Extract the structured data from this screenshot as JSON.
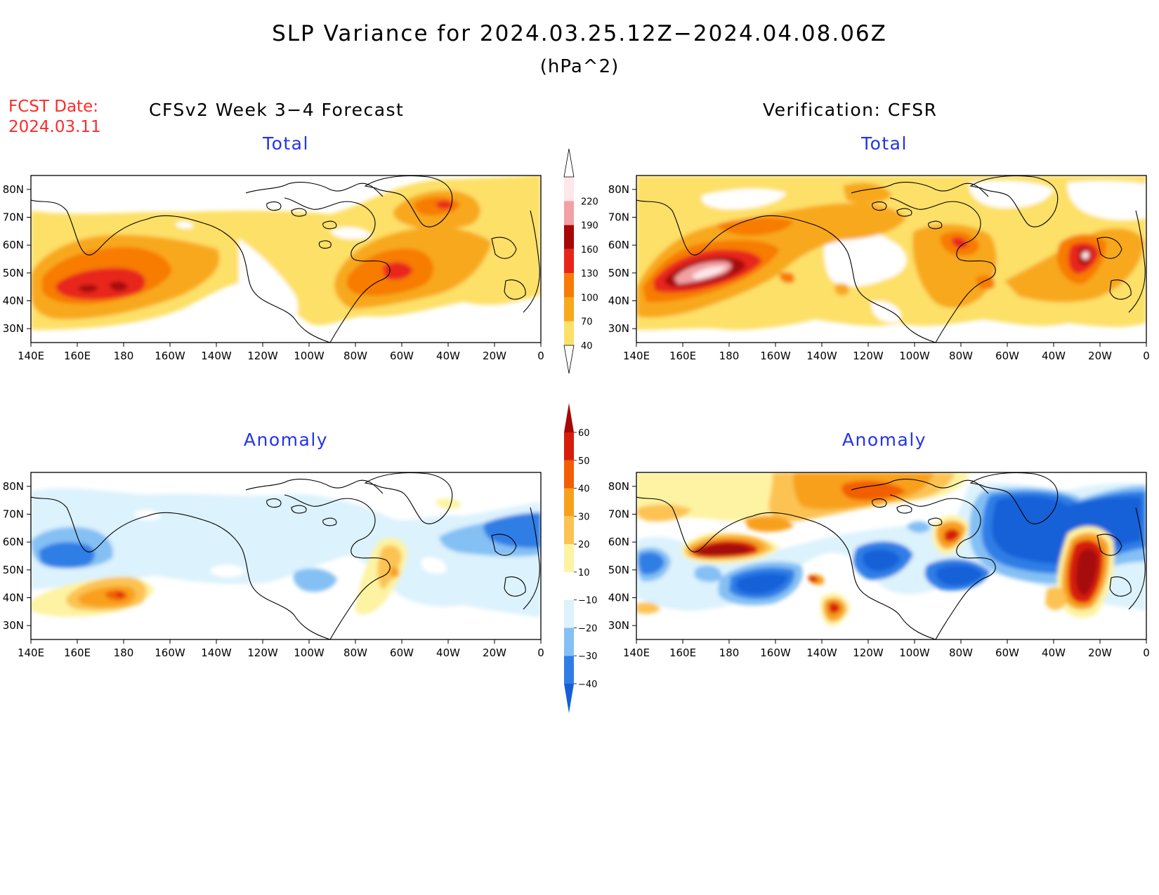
{
  "figure": {
    "title": "SLP Variance for 2024.03.25.12Z−2024.04.08.06Z",
    "units": "(hPa^2)",
    "fcst_label_line1": "FCST Date:",
    "fcst_label_line2": "2024.03.11",
    "left_column_title": "CFSv2 Week 3−4 Forecast",
    "right_column_title": "Verification: CFSR"
  },
  "panels": {
    "forecast_total": {
      "title": "Total"
    },
    "verification_total": {
      "title": "Total"
    },
    "forecast_anomaly": {
      "title": "Anomaly"
    },
    "verification_anomaly": {
      "title": "Anomaly"
    }
  },
  "axes": {
    "x_ticks": [
      "140E",
      "160E",
      "180",
      "160W",
      "140W",
      "120W",
      "100W",
      "80W",
      "60W",
      "40W",
      "20W",
      "0"
    ],
    "y_ticks": [
      "80N",
      "70N",
      "60N",
      "50N",
      "40N",
      "30N"
    ],
    "lon_range": [
      140,
      360
    ],
    "lat_range": [
      25,
      85
    ]
  },
  "colorbar_total": {
    "labels": [
      "40",
      "70",
      "100",
      "130",
      "160",
      "190",
      "220"
    ],
    "colors": [
      "#fde068",
      "#f8a81c",
      "#f77b06",
      "#e8251a",
      "#a80707",
      "#f2a0a3",
      "#fde7ea"
    ]
  },
  "colorbar_anomaly": {
    "labels": [
      "-40",
      "-30",
      "-20",
      "-10",
      "10",
      "20",
      "30",
      "40",
      "50",
      "60"
    ],
    "colors": [
      "#1560d8",
      "#2f7ee6",
      "#84c0f4",
      "#dcf2fc",
      "#ffffff",
      "#fdf3a2",
      "#fcc353",
      "#f8a01c",
      "#f25e06",
      "#d81c0c",
      "#a50707"
    ]
  },
  "palette": {
    "background": "#ffffff",
    "coastline": "#000000",
    "title_blue": "#2233ee",
    "fcst_red": "#ff2a2a"
  }
}
